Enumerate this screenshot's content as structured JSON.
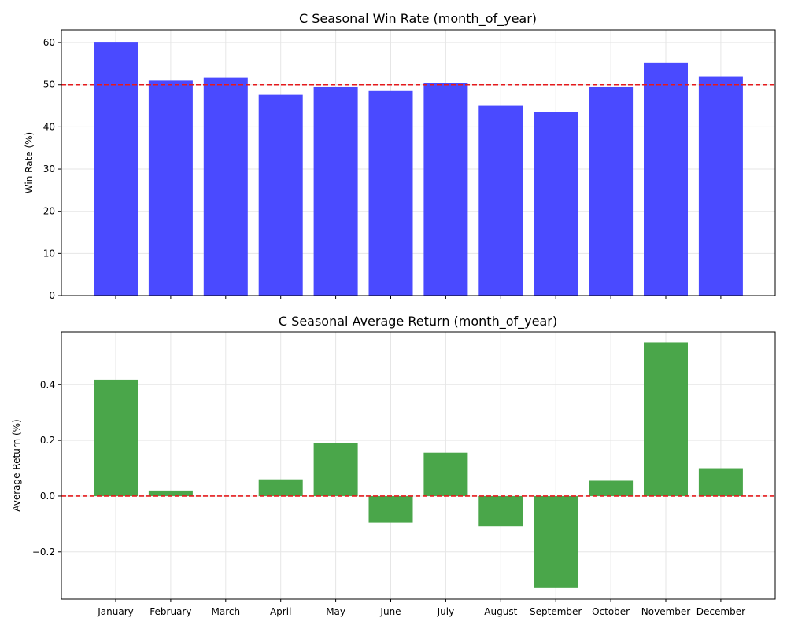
{
  "chart_data": [
    {
      "type": "bar",
      "title": "C Seasonal Win Rate (month_of_year)",
      "xlabel": "",
      "ylabel": "Win Rate (%)",
      "categories": [
        "January",
        "February",
        "March",
        "April",
        "May",
        "June",
        "July",
        "August",
        "September",
        "October",
        "November",
        "December"
      ],
      "values": [
        60.0,
        51.0,
        51.7,
        47.6,
        49.4,
        48.5,
        50.4,
        45.0,
        43.6,
        49.4,
        55.2,
        51.9
      ],
      "ylim": [
        0,
        63
      ],
      "yticks": [
        0,
        10,
        20,
        30,
        40,
        50,
        60
      ],
      "reference_line": 50,
      "bar_color": "#4a4aff",
      "reference_color": "#e41a1c",
      "grid": true,
      "show_x_tick_labels": false
    },
    {
      "type": "bar",
      "title": "C Seasonal Average Return (month_of_year)",
      "xlabel": "",
      "ylabel": "Average Return (%)",
      "categories": [
        "January",
        "February",
        "March",
        "April",
        "May",
        "June",
        "July",
        "August",
        "September",
        "October",
        "November",
        "December"
      ],
      "values": [
        0.418,
        0.02,
        0.0,
        0.06,
        0.19,
        -0.095,
        0.156,
        -0.108,
        -0.33,
        0.055,
        0.552,
        0.1
      ],
      "ylim": [
        -0.37,
        0.59
      ],
      "yticks": [
        -0.2,
        0.0,
        0.2,
        0.4
      ],
      "ytick_labels": [
        "−0.2",
        "0.0",
        "0.2",
        "0.4"
      ],
      "reference_line": 0,
      "bar_color": "#4aa64a",
      "reference_color": "#e41a1c",
      "grid": true,
      "show_x_tick_labels": true
    }
  ]
}
